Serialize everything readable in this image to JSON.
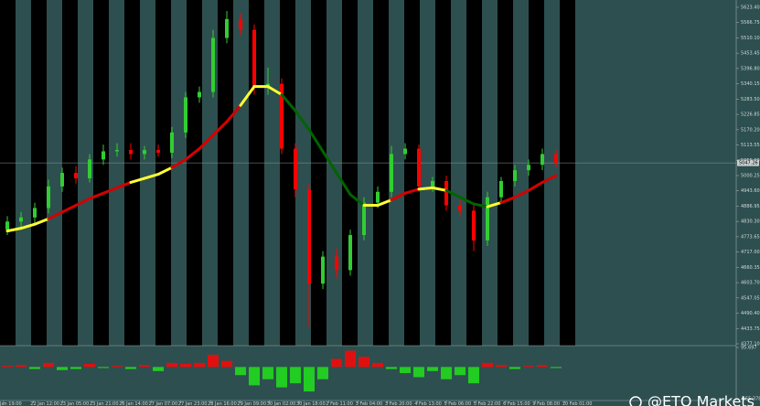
{
  "chart_data": {
    "type": "candlestick",
    "ylim": [
      4373.7,
      5650.5
    ],
    "yticks": [
      {
        "value": 5623.4,
        "label": "5623.40"
      },
      {
        "value": 5566.75,
        "label": "5566.75"
      },
      {
        "value": 5510.1,
        "label": "5510.10"
      },
      {
        "value": 5453.45,
        "label": "5453.45"
      },
      {
        "value": 5396.8,
        "label": "5396.80"
      },
      {
        "value": 5340.15,
        "label": "5340.15"
      },
      {
        "value": 5283.5,
        "label": "5283.50"
      },
      {
        "value": 5226.85,
        "label": "5226.85"
      },
      {
        "value": 5170.2,
        "label": "5170.20"
      },
      {
        "value": 5113.55,
        "label": "5113.55"
      },
      {
        "value": 5056.9,
        "label": "5056.90"
      },
      {
        "value": 5000.25,
        "label": "5000.25"
      },
      {
        "value": 4943.6,
        "label": "4943.60"
      },
      {
        "value": 4886.95,
        "label": "4886.95"
      },
      {
        "value": 4830.3,
        "label": "4830.30"
      },
      {
        "value": 4773.65,
        "label": "4773.65"
      },
      {
        "value": 4717,
        "label": "4717.00"
      },
      {
        "value": 4660.35,
        "label": "4660.35"
      },
      {
        "value": 4603.7,
        "label": "4603.70"
      },
      {
        "value": 4547.05,
        "label": "4547.05"
      },
      {
        "value": 4490.4,
        "label": "4490.40"
      },
      {
        "value": 4433.75,
        "label": "4433.75"
      },
      {
        "value": 4377.1,
        "label": "4377.10"
      }
    ],
    "xtick_labels": [
      "Jan 19:00",
      "22 Jan 12:00",
      "23 Jan 05:00",
      "23 Jan 21:00",
      "26 Jan 14:00",
      "27 Jan 07:00",
      "27 Jan 23:00",
      "28 Jan 16:00",
      "29 Jan 09:00",
      "30 Jan 02:00",
      "30 Jan 18:00",
      "2 Feb 11:00",
      "3 Feb 04:00",
      "3 Feb 20:00",
      "4 Feb 13:00",
      "5 Feb 06:00",
      "5 Feb 22:00",
      "6 Feb 15:00",
      "9 Feb 08:00",
      "10 Feb 01:00"
    ],
    "open": [
      4800,
      4830,
      4845,
      4880,
      4960,
      5010,
      4990,
      5060,
      5090,
      5095,
      5080,
      5095,
      5085,
      5160,
      5290,
      5310,
      5510,
      5580,
      5540,
      5330,
      5340,
      5100,
      4950,
      4600,
      4700,
      4650,
      4780,
      4900,
      4940,
      5080,
      5100,
      4960,
      4980,
      4890,
      4870,
      4760,
      4920,
      4980,
      5020,
      5040,
      5080
    ],
    "high": [
      4850,
      4865,
      4900,
      4985,
      5030,
      5035,
      5080,
      5115,
      5120,
      5120,
      5110,
      5115,
      5180,
      5310,
      5330,
      5540,
      5610,
      5600,
      5560,
      5400,
      5360,
      5120,
      4970,
      4720,
      4730,
      4800,
      4920,
      4960,
      5110,
      5120,
      5115,
      4995,
      5000,
      4910,
      4890,
      4940,
      4995,
      5040,
      5060,
      5100,
      5095
    ],
    "low": [
      4780,
      4810,
      4825,
      4860,
      4940,
      4970,
      4975,
      5040,
      5070,
      5060,
      5060,
      5070,
      5065,
      5140,
      5270,
      5290,
      5490,
      5520,
      5300,
      5300,
      5080,
      4920,
      4440,
      4580,
      4620,
      4630,
      4760,
      4880,
      4920,
      5060,
      4940,
      4940,
      4870,
      4850,
      4720,
      4740,
      4900,
      4960,
      5000,
      5020,
      5030
    ],
    "close": [
      4830,
      4845,
      4880,
      4960,
      5010,
      4990,
      5060,
      5090,
      5095,
      5080,
      5095,
      5085,
      5160,
      5290,
      5310,
      5510,
      5580,
      5540,
      5330,
      5340,
      5100,
      4950,
      4600,
      4700,
      4650,
      4780,
      4900,
      4940,
      5080,
      5100,
      4960,
      4980,
      4890,
      4870,
      4760,
      4920,
      4980,
      5020,
      5040,
      5080,
      5047
    ],
    "up_color": "#32cd32",
    "down_color": "#ff0000",
    "ma": {
      "values": [
        4795,
        4805,
        4820,
        4840,
        4865,
        4890,
        4915,
        4935,
        4955,
        4975,
        4990,
        5005,
        5030,
        5060,
        5100,
        5150,
        5200,
        5260,
        5330,
        5330,
        5300,
        5240,
        5170,
        5090,
        5010,
        4930,
        4890,
        4890,
        4910,
        4935,
        4950,
        4955,
        4945,
        4920,
        4895,
        4885,
        4900,
        4920,
        4945,
        4975,
        5000
      ],
      "colors": [
        "#ffff33",
        "#ffff33",
        "#ffff33",
        "#d40000",
        "#d40000",
        "#d40000",
        "#d40000",
        "#d40000",
        "#d40000",
        "#ffff33",
        "#ffff33",
        "#ffff33",
        "#d40000",
        "#d40000",
        "#d40000",
        "#d40000",
        "#d40000",
        "#ffff33",
        "#ffff33",
        "#ffff33",
        "#006400",
        "#006400",
        "#006400",
        "#006400",
        "#006400",
        "#006400",
        "#ffff33",
        "#ffff33",
        "#d40000",
        "#d40000",
        "#ffff33",
        "#ffff33",
        "#006400",
        "#006400",
        "#006400",
        "#ffff33",
        "#d40000",
        "#d40000",
        "#d40000",
        "#d40000",
        "#d40000"
      ]
    },
    "price_label": {
      "value": 5047.26,
      "label": "5047.26"
    },
    "indicator": {
      "ylim": [
        -155.3785,
        95.697
      ],
      "yticks": [
        95.697,
        -155.3785
      ],
      "values": [
        5,
        10,
        -10,
        20,
        -15,
        -10,
        15,
        -5,
        5,
        -10,
        10,
        -20,
        20,
        15,
        20,
        60,
        30,
        -40,
        -90,
        -60,
        -100,
        -80,
        -120,
        -60,
        40,
        80,
        50,
        20,
        -10,
        -30,
        -50,
        -20,
        -60,
        -40,
        -80,
        20,
        10,
        -10,
        5,
        10,
        -5
      ],
      "pos_color": "#e01010",
      "neg_color": "#22cc22"
    },
    "watermark": "@ETO Markets"
  }
}
